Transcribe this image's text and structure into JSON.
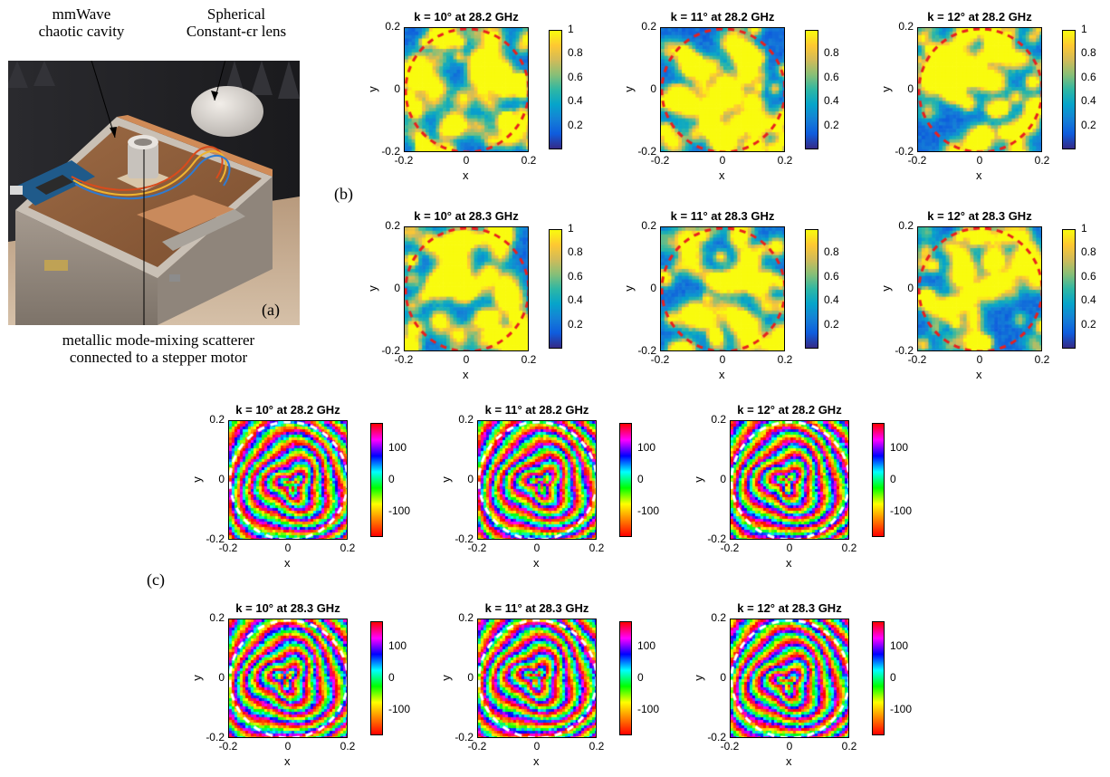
{
  "panel_a": {
    "label": "(a)",
    "top_left_caption": [
      "mmWave",
      "chaotic cavity"
    ],
    "top_right_caption": [
      "Spherical",
      "Constant-ϵr lens"
    ],
    "bottom_caption": [
      "metallic mode-mixing scatterer",
      "connected to a stepper motor"
    ]
  },
  "panel_b": {
    "label": "(b)"
  },
  "panel_c": {
    "label": "(c)"
  },
  "colors": {
    "parula": [
      "#352a87",
      "#0f5cdd",
      "#1481d6",
      "#06a4ca",
      "#2eb7a4",
      "#87bf77",
      "#d1bb59",
      "#fec832",
      "#f9fb0e"
    ],
    "hsv": [
      "#ff0000",
      "#ff8000",
      "#ffff00",
      "#00ff00",
      "#00ffff",
      "#0000ff",
      "#ff00ff",
      "#ff0000"
    ],
    "ring_b": "#e8201e",
    "ring_c": "#ffffff"
  },
  "chart_data": [
    {
      "type": "heatmap",
      "group": "magnitude",
      "row": 0,
      "col": 0,
      "title": "k = 10° at 28.2 GHz",
      "xlabel": "x",
      "ylabel": "y",
      "xlim": [
        -0.2,
        0.2
      ],
      "ylim": [
        -0.2,
        0.2
      ],
      "xticks": [
        "-0.2",
        "0",
        "0.2"
      ],
      "yticks": [
        "0.2",
        "0",
        "-0.2"
      ],
      "colorbar": {
        "range": [
          0,
          1
        ],
        "ticks": [
          "1",
          "0.8",
          "0.6",
          "0.4",
          "0.2"
        ],
        "colormap": "parula"
      }
    },
    {
      "type": "heatmap",
      "group": "magnitude",
      "row": 0,
      "col": 1,
      "title": "k = 11° at 28.2 GHz",
      "xlabel": "x",
      "ylabel": "y",
      "xlim": [
        -0.2,
        0.2
      ],
      "ylim": [
        -0.2,
        0.2
      ],
      "xticks": [
        "-0.2",
        "0",
        "0.2"
      ],
      "yticks": [
        "0.2",
        "0",
        "-0.2"
      ],
      "colorbar": {
        "range": [
          0,
          1
        ],
        "ticks": [
          "0.8",
          "0.6",
          "0.4",
          "0.2"
        ],
        "colormap": "parula"
      }
    },
    {
      "type": "heatmap",
      "group": "magnitude",
      "row": 0,
      "col": 2,
      "title": "k = 12° at 28.2 GHz",
      "xlabel": "x",
      "ylabel": "y",
      "xlim": [
        -0.2,
        0.2
      ],
      "ylim": [
        -0.2,
        0.2
      ],
      "xticks": [
        "-0.2",
        "0",
        "0.2"
      ],
      "yticks": [
        "0.2",
        "0",
        "-0.2"
      ],
      "colorbar": {
        "range": [
          0,
          1
        ],
        "ticks": [
          "1",
          "0.8",
          "0.6",
          "0.4",
          "0.2"
        ],
        "colormap": "parula"
      }
    },
    {
      "type": "heatmap",
      "group": "magnitude",
      "row": 1,
      "col": 0,
      "title": "k = 10° at 28.3 GHz",
      "xlabel": "x",
      "ylabel": "y",
      "xlim": [
        -0.2,
        0.2
      ],
      "ylim": [
        -0.2,
        0.2
      ],
      "xticks": [
        "-0.2",
        "0",
        "0.2"
      ],
      "yticks": [
        "0.2",
        "0",
        "-0.2"
      ],
      "colorbar": {
        "range": [
          0,
          1
        ],
        "ticks": [
          "1",
          "0.8",
          "0.6",
          "0.4",
          "0.2"
        ],
        "colormap": "parula"
      }
    },
    {
      "type": "heatmap",
      "group": "magnitude",
      "row": 1,
      "col": 1,
      "title": "k = 11° at 28.3 GHz",
      "xlabel": "x",
      "ylabel": "y",
      "xlim": [
        -0.2,
        0.2
      ],
      "ylim": [
        -0.2,
        0.2
      ],
      "xticks": [
        "-0.2",
        "0",
        "0.2"
      ],
      "yticks": [
        "0.2",
        "0",
        "-0.2"
      ],
      "colorbar": {
        "range": [
          0,
          1
        ],
        "ticks": [
          "0.8",
          "0.6",
          "0.4",
          "0.2"
        ],
        "colormap": "parula"
      }
    },
    {
      "type": "heatmap",
      "group": "magnitude",
      "row": 1,
      "col": 2,
      "title": "k = 12° at 28.3 GHz",
      "xlabel": "x",
      "ylabel": "y",
      "xlim": [
        -0.2,
        0.2
      ],
      "ylim": [
        -0.2,
        0.2
      ],
      "xticks": [
        "-0.2",
        "0",
        "0.2"
      ],
      "yticks": [
        "0.2",
        "0",
        "-0.2"
      ],
      "colorbar": {
        "range": [
          0,
          1
        ],
        "ticks": [
          "1",
          "0.8",
          "0.6",
          "0.4",
          "0.2"
        ],
        "colormap": "parula"
      }
    },
    {
      "type": "heatmap",
      "group": "phase",
      "row": 0,
      "col": 0,
      "title": "k = 10° at 28.2 GHz",
      "xlabel": "x",
      "ylabel": "y",
      "xlim": [
        -0.2,
        0.2
      ],
      "ylim": [
        -0.2,
        0.2
      ],
      "xticks": [
        "-0.2",
        "0",
        "0.2"
      ],
      "yticks": [
        "0.2",
        "0",
        "-0.2"
      ],
      "colorbar": {
        "range": [
          -180,
          180
        ],
        "ticks": [
          "100",
          "0",
          "-100"
        ],
        "colormap": "hsv"
      }
    },
    {
      "type": "heatmap",
      "group": "phase",
      "row": 0,
      "col": 1,
      "title": "k = 11° at 28.2 GHz",
      "xlabel": "x",
      "ylabel": "y",
      "xlim": [
        -0.2,
        0.2
      ],
      "ylim": [
        -0.2,
        0.2
      ],
      "xticks": [
        "-0.2",
        "0",
        "0.2"
      ],
      "yticks": [
        "0.2",
        "0",
        "-0.2"
      ],
      "colorbar": {
        "range": [
          -180,
          180
        ],
        "ticks": [
          "100",
          "0",
          "-100"
        ],
        "colormap": "hsv"
      }
    },
    {
      "type": "heatmap",
      "group": "phase",
      "row": 0,
      "col": 2,
      "title": "k = 12° at 28.2 GHz",
      "xlabel": "x",
      "ylabel": "y",
      "xlim": [
        -0.2,
        0.2
      ],
      "ylim": [
        -0.2,
        0.2
      ],
      "xticks": [
        "-0.2",
        "0",
        "0.2"
      ],
      "yticks": [
        "0.2",
        "0",
        "-0.2"
      ],
      "colorbar": {
        "range": [
          -180,
          180
        ],
        "ticks": [
          "100",
          "0",
          "-100"
        ],
        "colormap": "hsv"
      }
    },
    {
      "type": "heatmap",
      "group": "phase",
      "row": 1,
      "col": 0,
      "title": "k = 10° at 28.3 GHz",
      "xlabel": "x",
      "ylabel": "y",
      "xlim": [
        -0.2,
        0.2
      ],
      "ylim": [
        -0.2,
        0.2
      ],
      "xticks": [
        "-0.2",
        "0",
        "0.2"
      ],
      "yticks": [
        "0.2",
        "0",
        "-0.2"
      ],
      "colorbar": {
        "range": [
          -180,
          180
        ],
        "ticks": [
          "100",
          "0",
          "-100"
        ],
        "colormap": "hsv"
      }
    },
    {
      "type": "heatmap",
      "group": "phase",
      "row": 1,
      "col": 1,
      "title": "k = 11° at 28.3 GHz",
      "xlabel": "x",
      "ylabel": "y",
      "xlim": [
        -0.2,
        0.2
      ],
      "ylim": [
        -0.2,
        0.2
      ],
      "xticks": [
        "-0.2",
        "0",
        "0.2"
      ],
      "yticks": [
        "0.2",
        "0",
        "-0.2"
      ],
      "colorbar": {
        "range": [
          -180,
          180
        ],
        "ticks": [
          "100",
          "0",
          "-100"
        ],
        "colormap": "hsv"
      }
    },
    {
      "type": "heatmap",
      "group": "phase",
      "row": 1,
      "col": 2,
      "title": "k = 12° at 28.3 GHz",
      "xlabel": "x",
      "ylabel": "y",
      "xlim": [
        -0.2,
        0.2
      ],
      "ylim": [
        -0.2,
        0.2
      ],
      "xticks": [
        "-0.2",
        "0",
        "0.2"
      ],
      "yticks": [
        "0.2",
        "0",
        "-0.2"
      ],
      "colorbar": {
        "range": [
          -180,
          180
        ],
        "ticks": [
          "100",
          "0",
          "-100"
        ],
        "colormap": "hsv"
      }
    }
  ]
}
